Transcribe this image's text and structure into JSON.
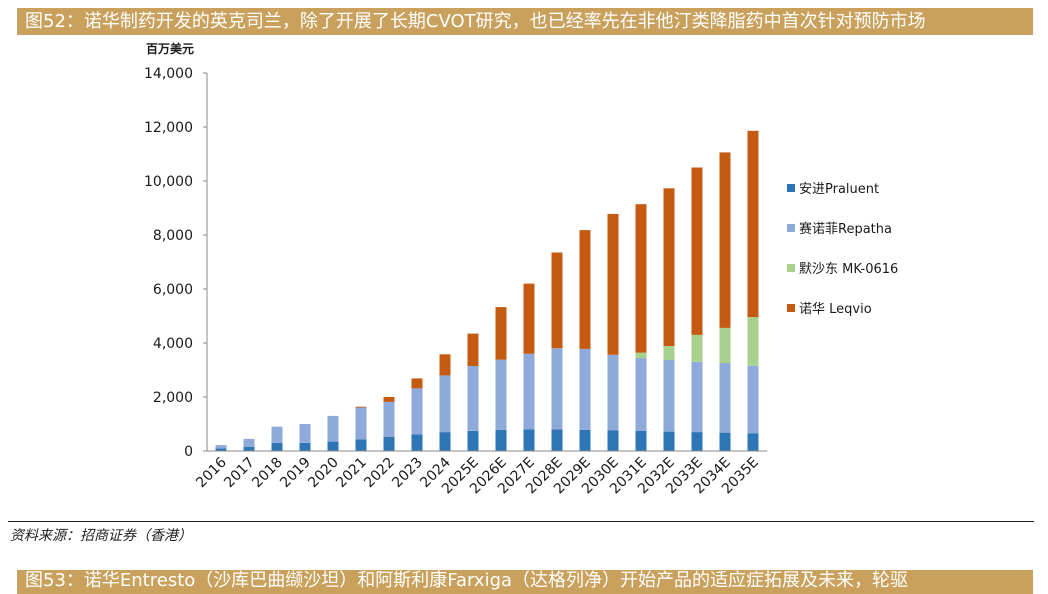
{
  "figure": {
    "title": "图52：诺华制药开发的英克司兰，除了开展了长期CVOT研究，也已经率先在非他汀类降脂药中首次针对预防市场",
    "source": "资料来源：招商证券（香港）",
    "next_title": "图53：诺华Entresto（沙库巴曲缬沙坦）和阿斯利康Farxiga（达格列净）开始产品的适应症拓展及未来，轮驱"
  },
  "colors": {
    "praluent": "#2e75b6",
    "repatha": "#8eaadb",
    "mk0616": "#a9d18e",
    "leqvio": "#c55a11",
    "title_bar": "#c9a15d"
  },
  "chart_data": {
    "type": "bar",
    "stacked": true,
    "ylabel": "百万美元",
    "ylim": [
      0,
      14000
    ],
    "yticks": [
      "0",
      "2,000",
      "4,000",
      "6,000",
      "8,000",
      "10,000",
      "12,000",
      "14,000"
    ],
    "ytick_values": [
      0,
      2000,
      4000,
      6000,
      8000,
      10000,
      12000,
      14000
    ],
    "grid": false,
    "legend_position": "right",
    "categories": [
      "2016",
      "2017",
      "2018",
      "2019",
      "2020",
      "2021",
      "2022",
      "2023",
      "2024",
      "2025E",
      "2026E",
      "2027E",
      "2028E",
      "2029E",
      "2030E",
      "2031E",
      "2032E",
      "2033E",
      "2034E",
      "2035E"
    ],
    "series": [
      {
        "name": "安进Praluent",
        "values": [
          100,
          150,
          300,
          300,
          350,
          430,
          520,
          620,
          700,
          750,
          780,
          800,
          800,
          780,
          760,
          740,
          720,
          700,
          680,
          660
        ]
      },
      {
        "name": "赛诺菲Repatha",
        "values": [
          120,
          300,
          600,
          700,
          950,
          1180,
          1300,
          1700,
          2100,
          2400,
          2600,
          2800,
          3000,
          3000,
          2800,
          2700,
          2650,
          2600,
          2580,
          2500
        ]
      },
      {
        "name": "默沙东 MK-0616",
        "values": [
          0,
          0,
          0,
          0,
          0,
          0,
          0,
          0,
          0,
          0,
          0,
          0,
          0,
          0,
          0,
          200,
          520,
          1000,
          1300,
          1800
        ]
      },
      {
        "name": "诺华 Leqvio",
        "values": [
          0,
          0,
          0,
          0,
          0,
          30,
          180,
          370,
          780,
          1200,
          1950,
          2600,
          3550,
          4400,
          5220,
          5500,
          5840,
          6200,
          6500,
          6900
        ]
      }
    ]
  }
}
